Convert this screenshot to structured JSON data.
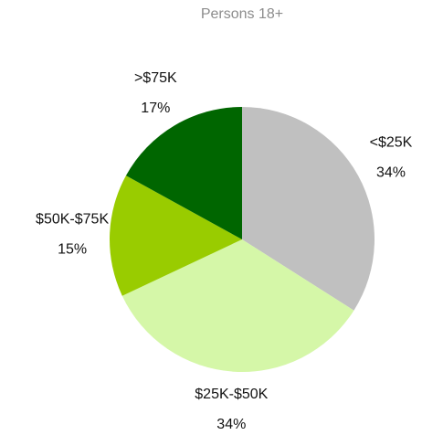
{
  "chart_data": {
    "type": "pie",
    "title": "Persons 18+",
    "categories": [
      "<$25K",
      "$25K-$50K",
      "$50K-$75K",
      ">$75K"
    ],
    "values": [
      34,
      34,
      15,
      17
    ],
    "value_labels": [
      "34%",
      "34%",
      "15%",
      "17%"
    ],
    "colors": [
      "#c0c0c0",
      "#d5f7a8",
      "#99cc00",
      "#006600"
    ]
  }
}
